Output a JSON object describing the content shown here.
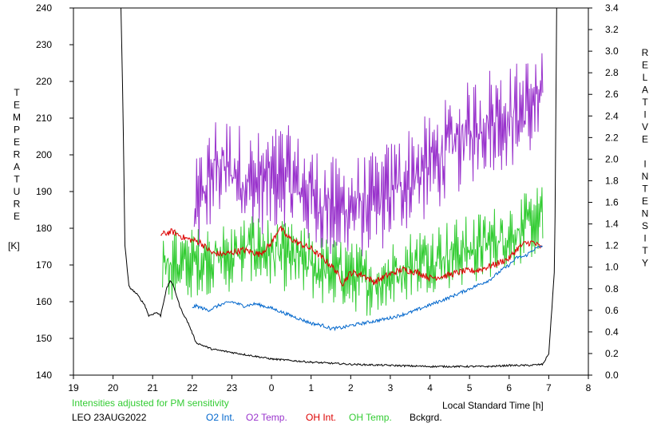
{
  "chart_data": {
    "type": "line",
    "xlabel": "Local Standard Time [h]",
    "ylabel_left_letters": [
      "T",
      "E",
      "M",
      "P",
      "E",
      "R",
      "A",
      "T",
      "U",
      "R",
      "E"
    ],
    "ylabel_left_unit": "[K]",
    "ylabel_right_letters": [
      "R",
      "E",
      "L",
      "A",
      "T",
      "I",
      "V",
      "E",
      "",
      "I",
      "N",
      "T",
      "E",
      "N",
      "S",
      "I",
      "T",
      "Y"
    ],
    "x_ticks": [
      "19",
      "20",
      "21",
      "22",
      "23",
      "0",
      "1",
      "2",
      "3",
      "4",
      "5",
      "6",
      "7",
      "8"
    ],
    "x_range": [
      19,
      32
    ],
    "y_left_ticks": [
      "140",
      "150",
      "160",
      "170",
      "180",
      "190",
      "200",
      "210",
      "220",
      "230",
      "240"
    ],
    "y_left_range": [
      140,
      240
    ],
    "y_right_ticks": [
      "0.0",
      "0.2",
      "0.4",
      "0.6",
      "0.8",
      "1.0",
      "1.2",
      "1.4",
      "1.6",
      "1.8",
      "2.0",
      "2.2",
      "2.4",
      "2.6",
      "2.8",
      "3.0",
      "3.2",
      "3.4"
    ],
    "y_right_range": [
      0,
      3.4
    ],
    "note": "Intensities adjusted for PM sensitivity",
    "station": "LEO 23AUG2022",
    "legend": [
      {
        "name": "O2 Int.",
        "color": "#0066cc"
      },
      {
        "name": "O2 Temp.",
        "color": "#9933cc"
      },
      {
        "name": "OH Int.",
        "color": "#dd0000"
      },
      {
        "name": "OH Temp.",
        "color": "#33cc33"
      },
      {
        "name": "Bckgrd.",
        "color": "#000000"
      }
    ],
    "series": [
      {
        "name": "O2 Temp.",
        "axis": "left",
        "color": "#9933cc",
        "noise": 9,
        "points": [
          [
            22.05,
            183
          ],
          [
            22.3,
            190
          ],
          [
            22.6,
            197
          ],
          [
            23.0,
            196
          ],
          [
            23.5,
            192
          ],
          [
            24.0,
            193
          ],
          [
            24.3,
            195
          ],
          [
            24.6,
            192
          ],
          [
            25.0,
            189
          ],
          [
            25.3,
            187
          ],
          [
            25.6,
            185
          ],
          [
            26.0,
            186
          ],
          [
            26.5,
            186
          ],
          [
            27.0,
            190
          ],
          [
            27.5,
            194
          ],
          [
            28.0,
            197
          ],
          [
            28.5,
            202
          ],
          [
            29.0,
            206
          ],
          [
            29.5,
            210
          ],
          [
            30.0,
            210
          ],
          [
            30.5,
            213
          ],
          [
            30.85,
            214
          ]
        ]
      },
      {
        "name": "OH Temp.",
        "axis": "left",
        "color": "#33cc33",
        "noise": 6,
        "points": [
          [
            21.25,
            172
          ],
          [
            21.5,
            170
          ],
          [
            21.8,
            170
          ],
          [
            22.2,
            171
          ],
          [
            22.6,
            172
          ],
          [
            23.0,
            172
          ],
          [
            23.5,
            175
          ],
          [
            24.0,
            173
          ],
          [
            24.5,
            172
          ],
          [
            25.0,
            170
          ],
          [
            25.4,
            168
          ],
          [
            25.8,
            168
          ],
          [
            26.0,
            167
          ],
          [
            26.3,
            166
          ],
          [
            26.6,
            165
          ],
          [
            27.0,
            167
          ],
          [
            27.5,
            170
          ],
          [
            28.0,
            172
          ],
          [
            28.5,
            173
          ],
          [
            29.0,
            174
          ],
          [
            29.5,
            176
          ],
          [
            30.0,
            178
          ],
          [
            30.4,
            180
          ],
          [
            30.85,
            183
          ]
        ]
      },
      {
        "name": "OH Int.",
        "axis": "right",
        "color": "#dd0000",
        "noise": 0.03,
        "points": [
          [
            21.2,
            1.3
          ],
          [
            21.5,
            1.33
          ],
          [
            21.8,
            1.27
          ],
          [
            22.2,
            1.23
          ],
          [
            22.5,
            1.13
          ],
          [
            22.8,
            1.12
          ],
          [
            23.3,
            1.16
          ],
          [
            23.7,
            1.12
          ],
          [
            24.0,
            1.22
          ],
          [
            24.2,
            1.37
          ],
          [
            24.4,
            1.28
          ],
          [
            24.7,
            1.22
          ],
          [
            25.0,
            1.17
          ],
          [
            25.3,
            1.08
          ],
          [
            25.6,
            0.98
          ],
          [
            25.8,
            0.85
          ],
          [
            26.0,
            0.95
          ],
          [
            26.3,
            0.93
          ],
          [
            26.6,
            0.86
          ],
          [
            26.9,
            0.92
          ],
          [
            27.3,
            0.98
          ],
          [
            27.7,
            0.95
          ],
          [
            28.0,
            0.9
          ],
          [
            28.4,
            0.92
          ],
          [
            28.8,
            0.96
          ],
          [
            29.2,
            0.97
          ],
          [
            29.6,
            1.02
          ],
          [
            30.0,
            1.08
          ],
          [
            30.2,
            1.17
          ],
          [
            30.4,
            1.22
          ],
          [
            30.6,
            1.23
          ],
          [
            30.85,
            1.17
          ]
        ]
      },
      {
        "name": "O2 Int.",
        "axis": "right",
        "color": "#0066cc",
        "noise": 0.015,
        "points": [
          [
            22.0,
            0.63
          ],
          [
            22.1,
            0.64
          ],
          [
            22.4,
            0.6
          ],
          [
            22.7,
            0.65
          ],
          [
            23.0,
            0.68
          ],
          [
            23.3,
            0.64
          ],
          [
            23.6,
            0.66
          ],
          [
            24.0,
            0.62
          ],
          [
            24.5,
            0.55
          ],
          [
            25.0,
            0.48
          ],
          [
            25.3,
            0.46
          ],
          [
            25.5,
            0.43
          ],
          [
            25.8,
            0.44
          ],
          [
            26.0,
            0.46
          ],
          [
            26.3,
            0.48
          ],
          [
            26.6,
            0.5
          ],
          [
            27.0,
            0.53
          ],
          [
            27.5,
            0.58
          ],
          [
            28.0,
            0.65
          ],
          [
            28.5,
            0.72
          ],
          [
            29.0,
            0.8
          ],
          [
            29.5,
            0.88
          ],
          [
            29.8,
            0.97
          ],
          [
            30.0,
            1.02
          ],
          [
            30.2,
            1.09
          ],
          [
            30.4,
            1.1
          ],
          [
            30.6,
            1.16
          ],
          [
            30.85,
            1.2
          ]
        ]
      },
      {
        "name": "Bckgrd.",
        "axis": "right",
        "color": "#000000",
        "noise": 0.008,
        "points": [
          [
            20.2,
            3.4
          ],
          [
            20.25,
            2.5
          ],
          [
            20.3,
            1.2
          ],
          [
            20.4,
            0.82
          ],
          [
            20.6,
            0.75
          ],
          [
            20.8,
            0.65
          ],
          [
            20.9,
            0.55
          ],
          [
            21.1,
            0.58
          ],
          [
            21.2,
            0.55
          ],
          [
            21.35,
            0.8
          ],
          [
            21.45,
            0.88
          ],
          [
            21.55,
            0.8
          ],
          [
            21.7,
            0.62
          ],
          [
            21.9,
            0.48
          ],
          [
            22.1,
            0.3
          ],
          [
            22.5,
            0.24
          ],
          [
            23.0,
            0.21
          ],
          [
            23.5,
            0.18
          ],
          [
            24.0,
            0.15
          ],
          [
            25.0,
            0.12
          ],
          [
            26.0,
            0.1
          ],
          [
            27.0,
            0.09
          ],
          [
            28.0,
            0.08
          ],
          [
            29.0,
            0.08
          ],
          [
            29.5,
            0.08
          ],
          [
            30.0,
            0.09
          ],
          [
            30.5,
            0.09
          ],
          [
            30.85,
            0.1
          ],
          [
            31.0,
            0.2
          ],
          [
            31.15,
            1.0
          ],
          [
            31.2,
            3.4
          ]
        ]
      }
    ]
  }
}
